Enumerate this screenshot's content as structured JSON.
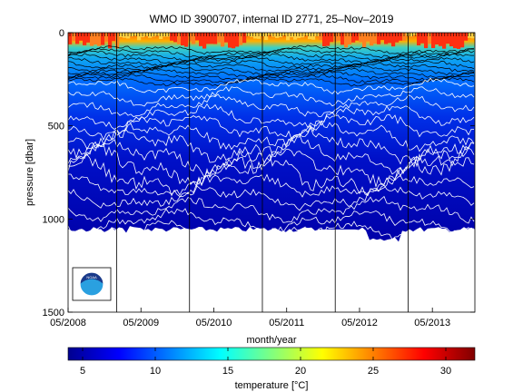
{
  "chart_data": {
    "type": "heatmap",
    "title": "WMO ID 3900707, internal ID 2771, 25–Nov–2019",
    "xlabel": "month/year",
    "ylabel": "pressure [dbar]",
    "x_ticks": [
      "05/2008",
      "05/2009",
      "05/2010",
      "05/2011",
      "05/2012",
      "05/2013"
    ],
    "y_ticks": [
      0,
      500,
      1000,
      1500
    ],
    "ylim": [
      1500,
      0
    ],
    "y_reversed": true,
    "xlim": [
      "2008-05",
      "2013-12"
    ],
    "year_boundaries": [
      "2009-01",
      "2010-01",
      "2011-01",
      "2012-01",
      "2013-01"
    ],
    "profile_bottom_pressure": 1100,
    "colorbar": {
      "label": "temperature [°C]",
      "ticks": [
        5,
        10,
        15,
        20,
        25,
        30
      ],
      "range": [
        4,
        32
      ],
      "colormap": "jet"
    },
    "surface_layer": {
      "depth_dbar": [
        0,
        100
      ],
      "temperature_c": [
        24,
        30
      ]
    },
    "deep_layer": {
      "depth_dbar": [
        700,
        1100
      ],
      "temperature_c": [
        4,
        6
      ]
    }
  },
  "logo": {
    "name": "noaa-logo",
    "text": "NOAA"
  }
}
